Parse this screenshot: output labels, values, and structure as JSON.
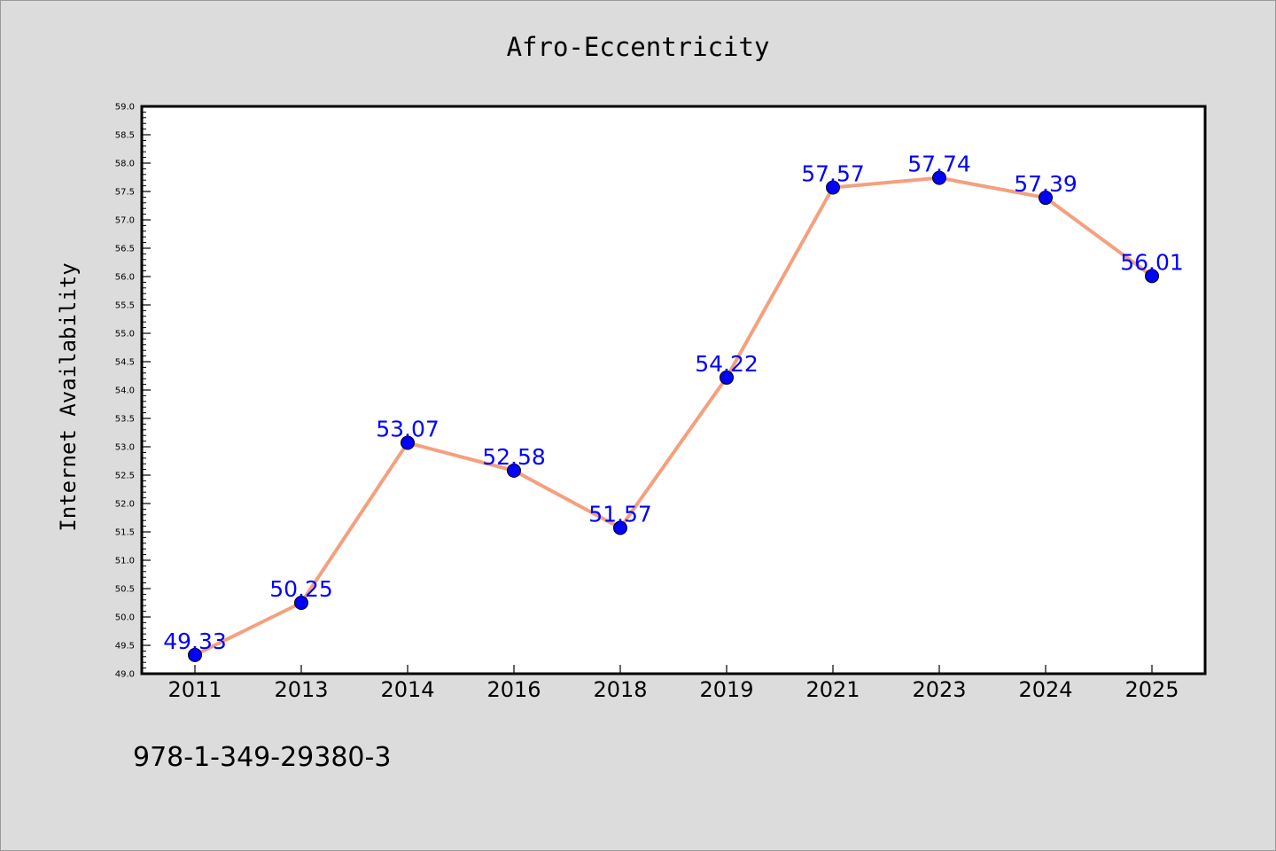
{
  "chart_data": {
    "type": "line",
    "title": "Afro-Eccentricity",
    "xlabel": "",
    "ylabel": "Internet Availability",
    "categories": [
      "2011",
      "2013",
      "2014",
      "2016",
      "2018",
      "2019",
      "2021",
      "2023",
      "2024",
      "2025"
    ],
    "series": [
      {
        "values": [
          49.33,
          50.25,
          53.07,
          52.58,
          51.57,
          54.22,
          57.57,
          57.74,
          57.39,
          56.01
        ],
        "labels": [
          "49.33",
          "50.25",
          "53.07",
          "52.58",
          "51.57",
          "54.22",
          "57.57",
          "57.74",
          "57.39",
          "56.01"
        ],
        "line_color": "#f4a07e",
        "marker_color": "#0000ff"
      }
    ],
    "ylim": [
      49.0,
      59.0
    ],
    "yticks": [
      "49.0",
      "49.5",
      "50.0",
      "50.5",
      "51.0",
      "51.5",
      "52.0",
      "52.5",
      "53.0",
      "53.5",
      "54.0",
      "54.5",
      "55.0",
      "55.5",
      "56.0",
      "56.5",
      "57.0",
      "57.5",
      "58.0",
      "58.5",
      "59.0"
    ],
    "grid": false,
    "legend": "none",
    "data_label_color": "#0000ff"
  },
  "footer": {
    "text": "978-1-349-29380-3"
  }
}
